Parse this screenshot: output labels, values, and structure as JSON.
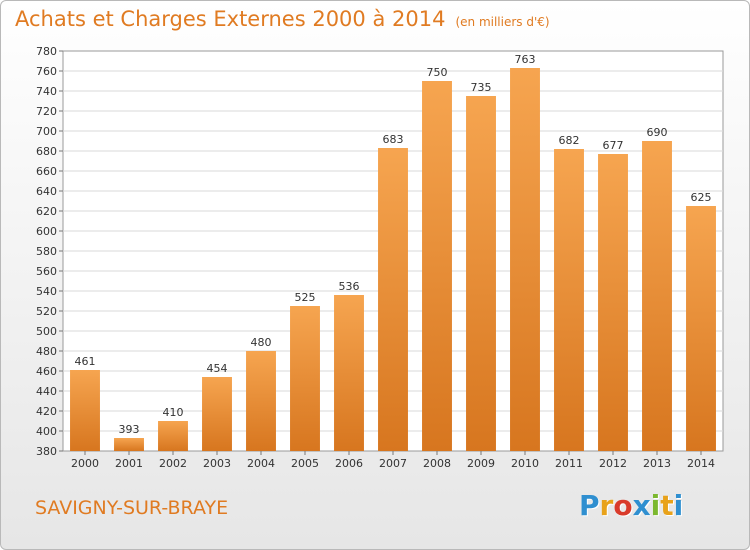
{
  "chart_data": {
    "type": "bar",
    "title": "Achats et Charges Externes 2000 à 2014",
    "subtitle": "(en milliers d'€)",
    "categories": [
      "2000",
      "2001",
      "2002",
      "2003",
      "2004",
      "2005",
      "2006",
      "2007",
      "2008",
      "2009",
      "2010",
      "2011",
      "2012",
      "2013",
      "2014"
    ],
    "values": [
      461,
      393,
      410,
      454,
      480,
      525,
      536,
      683,
      750,
      735,
      763,
      682,
      677,
      690,
      625
    ],
    "ylim": [
      380,
      780
    ],
    "yticks": [
      380,
      400,
      420,
      440,
      460,
      480,
      500,
      520,
      540,
      560,
      580,
      600,
      620,
      640,
      660,
      680,
      700,
      720,
      740,
      760,
      780
    ],
    "grid": true,
    "bar_color": "#f0973a",
    "bar_color_dark": "#d7761f"
  },
  "footer": {
    "location": "SAVIGNY-SUR-BRAYE",
    "logo_letters": [
      "P",
      "r",
      "o",
      "x",
      "i",
      "t",
      "i"
    ],
    "logo_colors": [
      "#2f8fd0",
      "#e8a21a",
      "#d93b2b",
      "#2f8fd0",
      "#7cb82f",
      "#e8a21a",
      "#2f8fd0"
    ]
  }
}
